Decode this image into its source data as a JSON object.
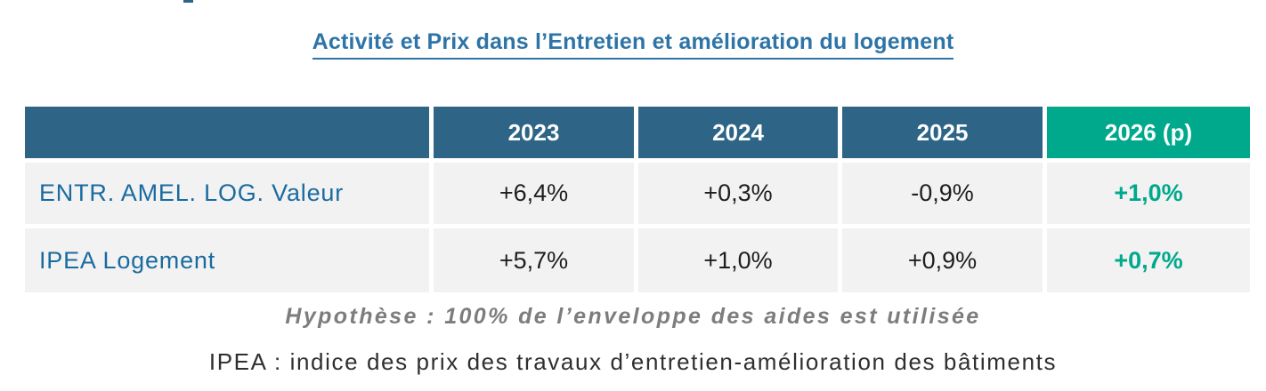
{
  "title": "Activité et Prix dans l’Entretien et amélioration du logement",
  "table": {
    "columns": [
      "",
      "2023",
      "2024",
      "2025",
      "2026 (p)"
    ],
    "rows": [
      {
        "label": "ENTR. AMEL. LOG. Valeur",
        "values": [
          "+6,4%",
          "+0,3%",
          "-0,9%",
          "+1,0%"
        ]
      },
      {
        "label": "IPEA Logement",
        "values": [
          "+5,7%",
          "+1,0%",
          "+0,9%",
          "+0,7%"
        ]
      }
    ]
  },
  "notes": {
    "hypothesis": "Hypothèse : 100% de l’enveloppe des aides est utilisée",
    "definition": "IPEA : indice des prix des travaux d’entretien-amélioration des bâtiments"
  },
  "colors": {
    "header_bg": "#2E6485",
    "forecast_accent": "#00A98C",
    "cell_bg": "#F2F2F2",
    "row_label_text": "#1A6B9F",
    "title_text": "#2E74A6",
    "hypothesis_text": "#7D7D7D",
    "definition_text": "#2F2F2F"
  },
  "chart_data": {
    "type": "table",
    "title": "Activité et Prix dans l’Entretien et amélioration du logement",
    "columns": [
      "",
      "2023",
      "2024",
      "2025",
      "2026 (p)"
    ],
    "rows": [
      [
        "ENTR. AMEL. LOG. Valeur",
        "+6,4%",
        "+0,3%",
        "-0,9%",
        "+1,0%"
      ],
      [
        "IPEA Logement",
        "+5,7%",
        "+1,0%",
        "+0,9%",
        "+0,7%"
      ]
    ],
    "annotations": [
      "Hypothèse : 100% de l’enveloppe des aides est utilisée",
      "IPEA : indice des prix des travaux d’entretien-amélioration des bâtiments"
    ],
    "layout_hints": {
      "forecast_column": "2026 (p)",
      "forecast_column_color": "#00A98C",
      "header_color": "#2E6485"
    }
  }
}
